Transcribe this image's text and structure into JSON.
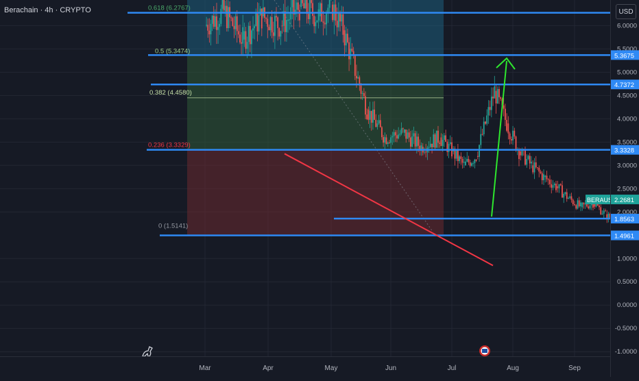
{
  "header": {
    "title": "Berachain · 4h · CRYPTO",
    "currency": "USD"
  },
  "colors": {
    "background": "#161a25",
    "level_line": "#2f8af5",
    "support_line": "#f23645",
    "arrow": "#2ee82e",
    "zone_upper_blue": "#1e5f7d",
    "zone_upper_green": "#2f5a38",
    "zone_lower_red": "#6b2a30",
    "badge_bg": "#2f8af5",
    "price_badge_bg": "#1fa39a"
  },
  "chart_data": {
    "type": "candlestick",
    "symbol": "BERAUSD",
    "interval": "4h",
    "last_price": "2.2681",
    "y_range": [
      -1.1,
      6.55
    ],
    "y_ticks": [
      "6.0000",
      "5.5000",
      "5.0000",
      "4.5000",
      "4.0000",
      "3.5000",
      "3.0000",
      "2.5000",
      "2.0000",
      "1.0000",
      "0.5000",
      "0.0000",
      "-0.5000",
      "-1.0000"
    ],
    "x_ticks": [
      "Mar",
      "Apr",
      "May",
      "Jun",
      "Jul",
      "Aug",
      "Sep"
    ],
    "fib_levels": [
      {
        "label": "0.618 (6.2767)",
        "value": 6.2767,
        "color": "#4aa86a"
      },
      {
        "label": "0.5 (5.3474)",
        "value": 5.3474,
        "color": "#9fcf8c"
      },
      {
        "label": "0.382 (4.4580)",
        "value": 4.458,
        "color": "#c6e0a8"
      },
      {
        "label": "0.236 (3.3329)",
        "value": 3.3329,
        "color": "#f23645"
      },
      {
        "label": "0 (1.5141)",
        "value": 1.5141,
        "color": "#9598a1"
      }
    ],
    "horizontal_levels": [
      {
        "value": 6.2767,
        "badge": ""
      },
      {
        "value": 5.3675,
        "badge": "5.3675"
      },
      {
        "value": 4.7372,
        "badge": "4.7372"
      },
      {
        "value": 3.3328,
        "badge": "3.3328"
      },
      {
        "value": 1.8563,
        "badge": "1.8563"
      },
      {
        "value": 1.4961,
        "badge": "1.4961"
      }
    ],
    "price_path": [
      [
        1.0,
        6.0
      ],
      [
        1.3,
        6.3
      ],
      [
        1.6,
        5.7
      ],
      [
        1.9,
        6.2
      ],
      [
        2.2,
        6.0
      ],
      [
        2.5,
        6.4
      ],
      [
        2.8,
        6.2
      ],
      [
        3.0,
        6.45
      ],
      [
        3.2,
        5.9
      ],
      [
        3.6,
        4.2
      ],
      [
        3.9,
        3.6
      ],
      [
        4.2,
        3.7
      ],
      [
        4.5,
        3.4
      ],
      [
        4.8,
        3.6
      ],
      [
        5.0,
        3.3
      ],
      [
        5.2,
        3.0
      ],
      [
        5.4,
        3.2
      ],
      [
        5.7,
        4.6
      ],
      [
        5.9,
        3.9
      ],
      [
        6.1,
        3.3
      ],
      [
        6.3,
        3.0
      ],
      [
        6.5,
        2.75
      ],
      [
        6.7,
        2.55
      ],
      [
        6.9,
        2.3
      ],
      [
        7.1,
        2.1
      ],
      [
        7.3,
        2.2
      ],
      [
        7.5,
        1.95
      ],
      [
        7.7,
        1.75
      ],
      [
        7.9,
        1.55
      ],
      [
        8.1,
        1.7
      ],
      [
        8.3,
        1.6
      ],
      [
        8.5,
        1.72
      ],
      [
        8.7,
        1.8
      ],
      [
        8.9,
        2.0
      ],
      [
        9.0,
        2.27
      ]
    ]
  },
  "annotations": {
    "support_line": {
      "start": [
        4.0,
        3.25
      ],
      "end": [
        9.7,
        0.85
      ]
    },
    "arrow": {
      "start": [
        9.2,
        1.9
      ],
      "end": [
        9.6,
        5.3
      ]
    }
  },
  "price_badge": {
    "label": "BERAUSD",
    "value": "2.2681"
  }
}
